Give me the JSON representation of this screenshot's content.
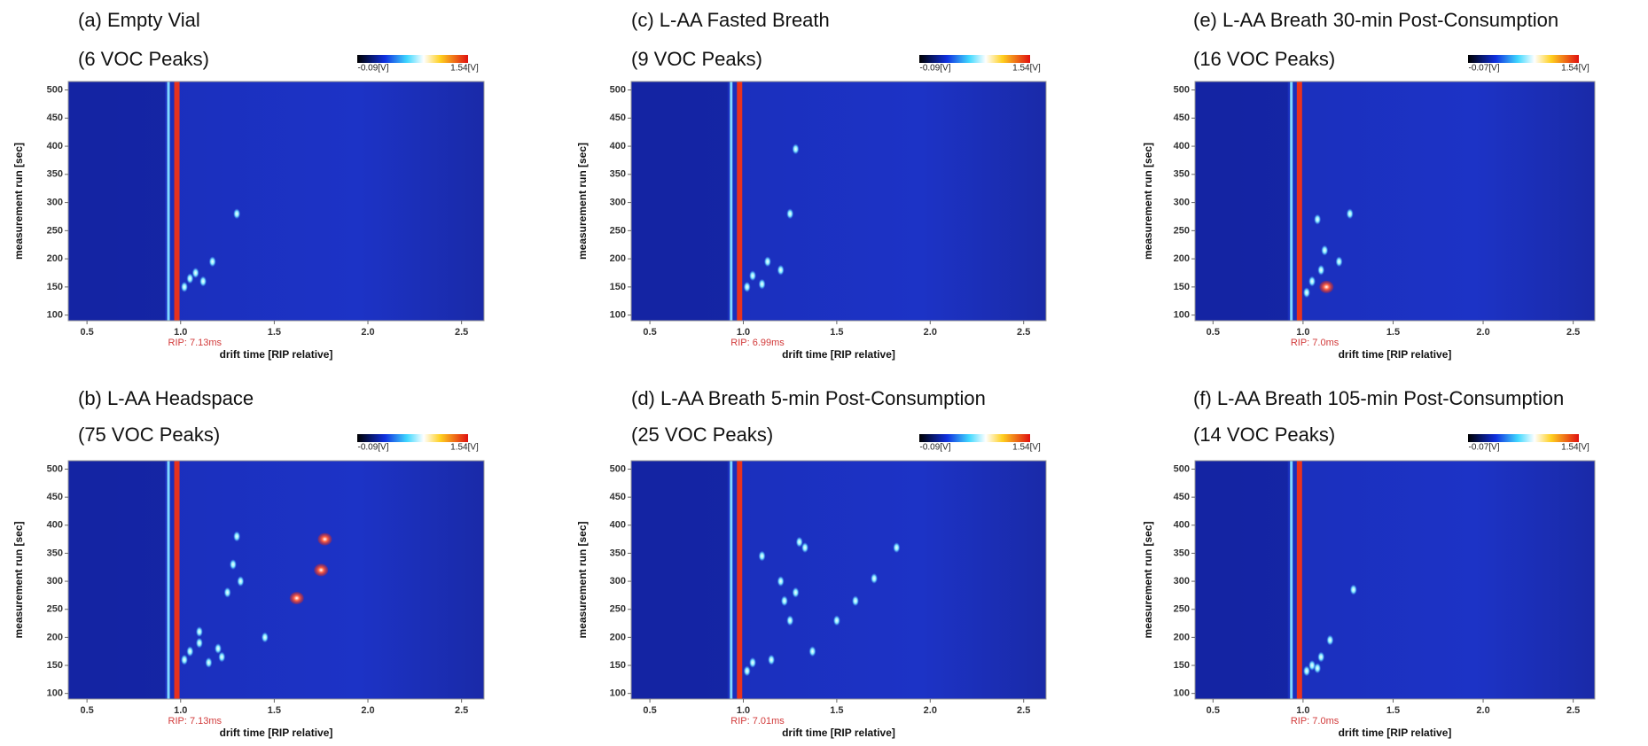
{
  "chart_data": [
    {
      "type": "heatmap",
      "title": "(a) Empty Vial",
      "subtitle": "(6 VOC Peaks)",
      "colorbar_labels": [
        "-0.09[V]",
        "1.54[V]"
      ],
      "xlabel": "drift time [RIP relative]",
      "ylabel": "measurement run [sec]",
      "annotation": "RIP: 7.13ms",
      "xlim": [
        0.4,
        2.62
      ],
      "ylim": [
        90,
        515
      ],
      "xticks": [
        0.5,
        {
          "value": 1,
          "label": "1.0"
        },
        1.5,
        {
          "value": 2,
          "label": "2.0"
        },
        2.5
      ],
      "yticks": [
        100,
        150,
        200,
        250,
        300,
        350,
        400,
        450,
        500
      ],
      "rip_x": 0.98,
      "rip_color": "#e8321e",
      "reactant_x": 0.935,
      "reactant_color": "#7fd8ff",
      "peaks": {
        "x": [
          1.02,
          1.05,
          1.08,
          1.12,
          1.17,
          1.3
        ],
        "y": [
          150,
          165,
          175,
          160,
          195,
          280
        ]
      }
    },
    {
      "type": "heatmap",
      "title": "(b) L-AA Headspace",
      "subtitle": "(75 VOC Peaks)",
      "colorbar_labels": [
        "-0.09[V]",
        "1.54[V]"
      ],
      "xlabel": "drift time [RIP relative]",
      "ylabel": "measurement run [sec]",
      "annotation": "RIP: 7.13ms",
      "xlim": [
        0.4,
        2.62
      ],
      "ylim": [
        90,
        515
      ],
      "xticks": [
        0.5,
        {
          "value": 1,
          "label": "1.0"
        },
        1.5,
        {
          "value": 2,
          "label": "2.0"
        },
        2.5
      ],
      "yticks": [
        100,
        150,
        200,
        250,
        300,
        350,
        400,
        450,
        500
      ],
      "rip_x": 0.98,
      "rip_color": "#e8321e",
      "reactant_x": 0.935,
      "reactant_color": "#7fd8ff",
      "peaks": {
        "x": [
          1.02,
          1.05,
          1.1,
          1.15,
          1.22,
          1.25,
          1.28,
          1.3,
          1.32,
          1.45,
          1.1,
          1.2
        ],
        "y": [
          160,
          175,
          190,
          155,
          165,
          280,
          330,
          380,
          300,
          200,
          210,
          180
        ]
      },
      "strong_peaks": {
        "x": [
          1.62,
          1.75,
          1.77
        ],
        "y": [
          270,
          320,
          375
        ]
      }
    },
    {
      "type": "heatmap",
      "title": "(c) L-AA Fasted Breath",
      "subtitle": "(9 VOC Peaks)",
      "colorbar_labels": [
        "-0.09[V]",
        "1.54[V]"
      ],
      "xlabel": "drift time [RIP relative]",
      "ylabel": "measurement run [sec]",
      "annotation": "RIP: 6.99ms",
      "xlim": [
        0.4,
        2.62
      ],
      "ylim": [
        90,
        515
      ],
      "xticks": [
        0.5,
        {
          "value": 1,
          "label": "1.0"
        },
        1.5,
        {
          "value": 2,
          "label": "2.0"
        },
        2.5
      ],
      "yticks": [
        100,
        150,
        200,
        250,
        300,
        350,
        400,
        450,
        500
      ],
      "rip_x": 0.98,
      "rip_color": "#e8321e",
      "reactant_x": 0.935,
      "reactant_color": "#7fd8ff",
      "peaks": {
        "x": [
          1.02,
          1.05,
          1.1,
          1.13,
          1.2,
          1.25,
          1.28
        ],
        "y": [
          150,
          170,
          155,
          195,
          180,
          280,
          395
        ]
      }
    },
    {
      "type": "heatmap",
      "title": "(d) L-AA Breath 5-min Post-Consumption",
      "subtitle": "(25 VOC Peaks)",
      "colorbar_labels": [
        "-0.09[V]",
        "1.54[V]"
      ],
      "xlabel": "drift time [RIP relative]",
      "ylabel": "measurement run [sec]",
      "annotation": "RIP: 7.01ms",
      "xlim": [
        0.4,
        2.62
      ],
      "ylim": [
        90,
        515
      ],
      "xticks": [
        0.5,
        {
          "value": 1,
          "label": "1.0"
        },
        1.5,
        {
          "value": 2,
          "label": "2.0"
        },
        2.5
      ],
      "yticks": [
        100,
        150,
        200,
        250,
        300,
        350,
        400,
        450,
        500
      ],
      "rip_x": 0.98,
      "rip_color": "#e8321e",
      "reactant_x": 0.935,
      "reactant_color": "#7fd8ff",
      "peaks": {
        "x": [
          1.02,
          1.05,
          1.1,
          1.15,
          1.2,
          1.25,
          1.3,
          1.33,
          1.37,
          1.5,
          1.6,
          1.7,
          1.82,
          1.28,
          1.22
        ],
        "y": [
          140,
          155,
          345,
          160,
          300,
          230,
          370,
          360,
          175,
          230,
          265,
          305,
          360,
          280,
          265
        ]
      }
    },
    {
      "type": "heatmap",
      "title": "(e) L-AA Breath 30-min Post-Consumption",
      "subtitle": "(16 VOC Peaks)",
      "colorbar_labels": [
        "-0.07[V]",
        "1.54[V]"
      ],
      "xlabel": "drift time [RIP relative]",
      "ylabel": "measurement run [sec]",
      "annotation": "RIP: 7.0ms",
      "xlim": [
        0.4,
        2.62
      ],
      "ylim": [
        90,
        515
      ],
      "xticks": [
        0.5,
        {
          "value": 1,
          "label": "1.0"
        },
        1.5,
        {
          "value": 2,
          "label": "2.0"
        },
        2.5
      ],
      "yticks": [
        100,
        150,
        200,
        250,
        300,
        350,
        400,
        450,
        500
      ],
      "rip_x": 0.98,
      "rip_color": "#e8321e",
      "reactant_x": 0.935,
      "reactant_color": "#7fd8ff",
      "peaks": {
        "x": [
          1.02,
          1.05,
          1.08,
          1.1,
          1.12,
          1.2,
          1.26
        ],
        "y": [
          140,
          160,
          270,
          180,
          215,
          195,
          280
        ]
      },
      "strong_peaks": {
        "x": [
          1.13
        ],
        "y": [
          150
        ]
      }
    },
    {
      "type": "heatmap",
      "title": "(f) L-AA Breath 105-min Post-Consumption",
      "subtitle": "(14 VOC Peaks)",
      "colorbar_labels": [
        "-0.07[V]",
        "1.54[V]"
      ],
      "xlabel": "drift time [RIP relative]",
      "ylabel": "measurement run [sec]",
      "annotation": "RIP: 7.0ms",
      "xlim": [
        0.4,
        2.62
      ],
      "ylim": [
        90,
        515
      ],
      "xticks": [
        0.5,
        {
          "value": 1,
          "label": "1.0"
        },
        1.5,
        {
          "value": 2,
          "label": "2.0"
        },
        2.5
      ],
      "yticks": [
        100,
        150,
        200,
        250,
        300,
        350,
        400,
        450,
        500
      ],
      "rip_x": 0.98,
      "rip_color": "#e8321e",
      "reactant_x": 0.935,
      "reactant_color": "#7fd8ff",
      "peaks": {
        "x": [
          1.02,
          1.05,
          1.08,
          1.1,
          1.15,
          1.28
        ],
        "y": [
          140,
          150,
          145,
          165,
          195,
          285
        ]
      }
    }
  ]
}
